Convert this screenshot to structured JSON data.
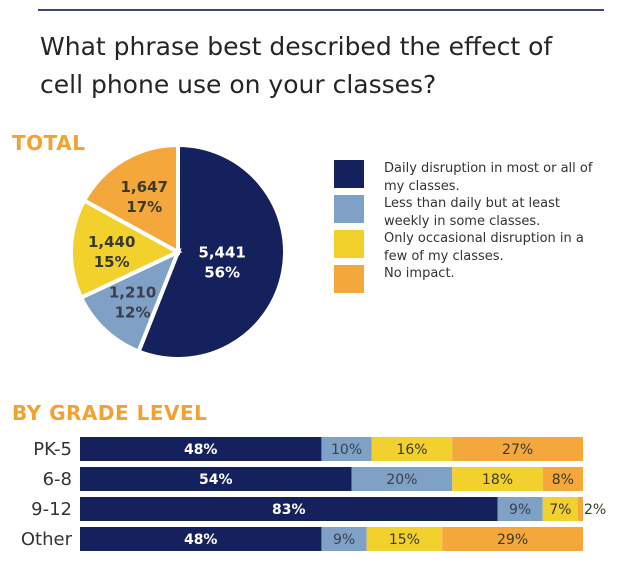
{
  "title": "What phrase best described the effect of cell phone use on your classes?",
  "colors": {
    "daily": "#15215c",
    "weekly": "#7fa1c6",
    "occasional": "#f2d12d",
    "none": "#f4a73b"
  },
  "chart_data": [
    {
      "type": "pie",
      "title": "TOTAL",
      "slices": [
        {
          "name": "Daily disruption in most or all of my classes.",
          "count": "5,441",
          "value": 56,
          "color": "#15215c",
          "text": "#ffffff"
        },
        {
          "name": "Less than daily but at least weekly in some classes.",
          "count": "1,210",
          "value": 12,
          "color": "#7fa1c6",
          "text": "#3a3f4a"
        },
        {
          "name": "Only occasional disruption in a few of my classes.",
          "count": "1,440",
          "value": 15,
          "color": "#f2d12d",
          "text": "#3a3a2a"
        },
        {
          "name": "No impact.",
          "count": "1,647",
          "value": 17,
          "color": "#f4a73b",
          "text": "#3a3a2a"
        }
      ],
      "legend": [
        "Daily disruption in most or all of my classes.",
        "Less than daily but at least weekly in some classes.",
        "Only occasional disruption in a few of my classes.",
        "No impact."
      ],
      "legend_placement": "right"
    },
    {
      "type": "bar",
      "stacked": true,
      "orientation": "horizontal",
      "title": "BY GRADE LEVEL",
      "categories": [
        "PK-5",
        "6-8",
        "9-12",
        "Other"
      ],
      "series": [
        {
          "name": "Daily disruption",
          "values": [
            48,
            54,
            83,
            48
          ]
        },
        {
          "name": "Weekly",
          "values": [
            10,
            20,
            9,
            9
          ]
        },
        {
          "name": "Occasional",
          "values": [
            16,
            18,
            7,
            15
          ]
        },
        {
          "name": "No impact",
          "values": [
            27,
            8,
            2,
            29
          ]
        }
      ],
      "unit": "%"
    }
  ]
}
